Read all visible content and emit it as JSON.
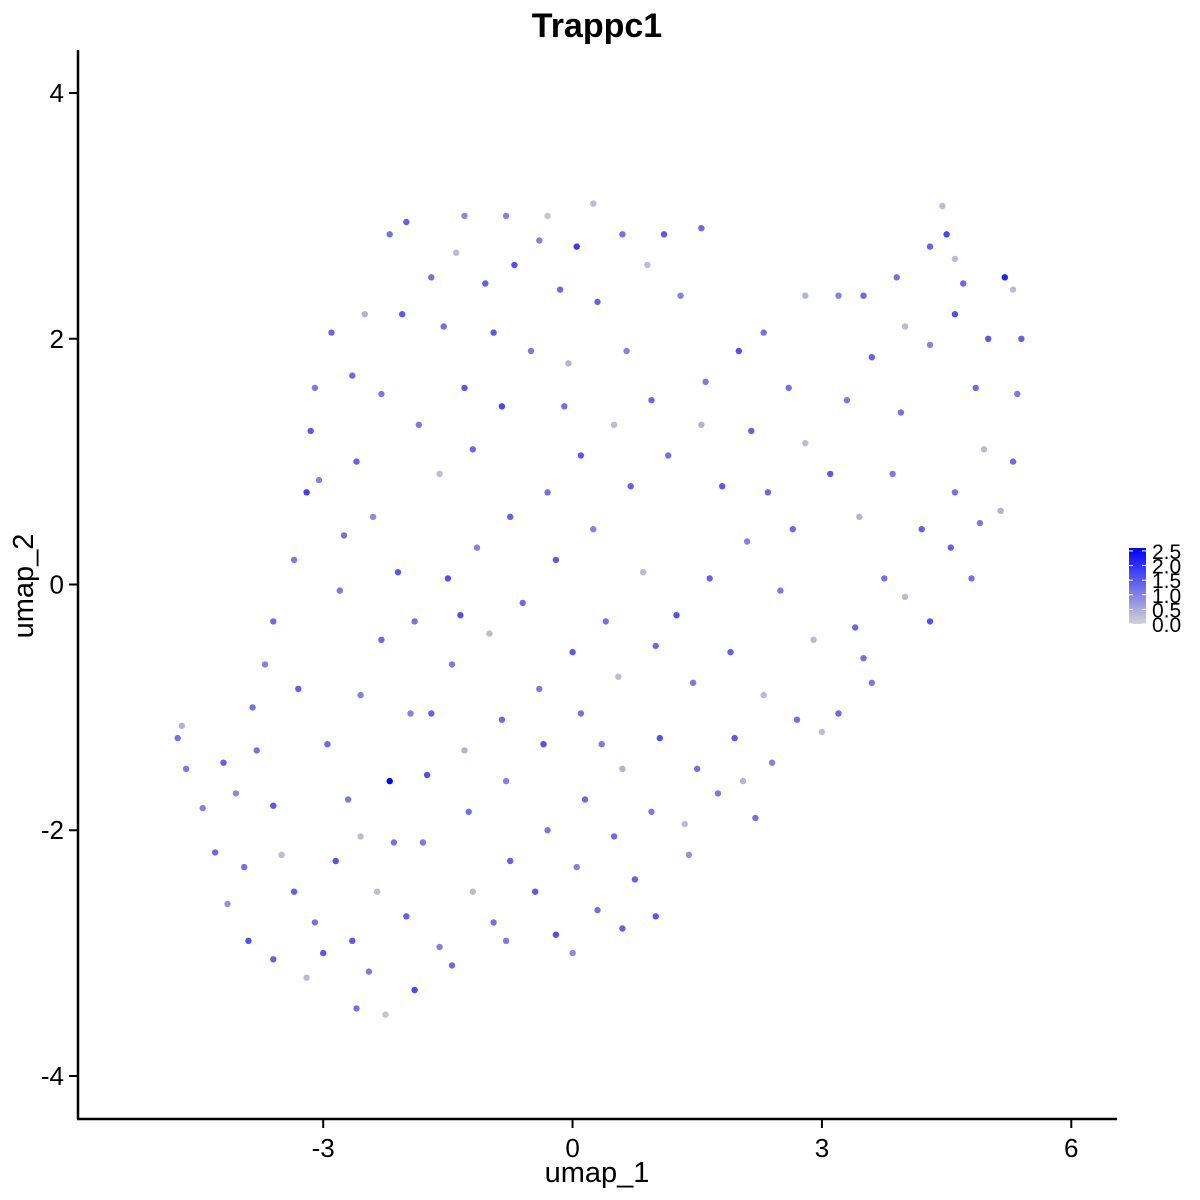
{
  "chart_data": {
    "type": "scatter",
    "title": "Trappc1",
    "xlabel": "umap_1",
    "ylabel": "umap_2",
    "xlim": [
      -5.95,
      6.55
    ],
    "ylim": [
      -4.35,
      4.35
    ],
    "xticks": [
      -3,
      0,
      3,
      6
    ],
    "xtick_labels": [
      "-3",
      "0",
      "3",
      "6"
    ],
    "yticks": [
      -4,
      -2,
      0,
      2,
      4
    ],
    "ytick_labels": [
      "-4",
      "-2",
      "0",
      "2",
      "4"
    ],
    "grid": false,
    "legend_position": "right",
    "color_scale": {
      "low_color": "#d3d3d3",
      "high_color": "#0000ff",
      "min": 0,
      "max": 2.6,
      "tick_values": [
        0.0,
        0.5,
        1.0,
        1.5,
        2.0,
        2.5
      ],
      "tick_labels": [
        "0.0",
        "0.5",
        "1.0",
        "1.5",
        "2.0",
        "2.5"
      ]
    },
    "points": [
      {
        "x": -4.75,
        "y": -1.25,
        "expr": 1.2
      },
      {
        "x": -4.7,
        "y": -1.15,
        "expr": 0.4
      },
      {
        "x": -4.65,
        "y": -1.5,
        "expr": 1.1
      },
      {
        "x": -4.45,
        "y": -1.82,
        "expr": 1.0
      },
      {
        "x": -4.3,
        "y": -2.18,
        "expr": 1.3
      },
      {
        "x": -4.15,
        "y": -2.6,
        "expr": 0.8
      },
      {
        "x": -3.9,
        "y": -2.9,
        "expr": 1.6
      },
      {
        "x": -3.6,
        "y": -3.05,
        "expr": 1.4
      },
      {
        "x": -3.2,
        "y": -3.2,
        "expr": 0.3
      },
      {
        "x": -2.6,
        "y": -3.45,
        "expr": 1.2
      },
      {
        "x": -2.25,
        "y": -3.5,
        "expr": 0.2
      },
      {
        "x": -1.9,
        "y": -3.3,
        "expr": 1.7
      },
      {
        "x": -1.45,
        "y": -3.1,
        "expr": 1.3
      },
      {
        "x": -0.8,
        "y": -2.9,
        "expr": 1.1
      },
      {
        "x": 0.0,
        "y": -3.0,
        "expr": 0.9
      },
      {
        "x": 0.6,
        "y": -2.8,
        "expr": 1.4
      },
      {
        "x": 1.0,
        "y": -2.7,
        "expr": 1.5
      },
      {
        "x": 1.4,
        "y": -2.2,
        "expr": 0.8
      },
      {
        "x": 2.2,
        "y": -1.9,
        "expr": 1.2
      },
      {
        "x": 3.0,
        "y": -1.2,
        "expr": 0.3
      },
      {
        "x": 3.6,
        "y": -0.8,
        "expr": 1.1
      },
      {
        "x": 4.3,
        "y": -0.3,
        "expr": 1.6
      },
      {
        "x": 4.8,
        "y": 0.05,
        "expr": 1.2
      },
      {
        "x": 5.15,
        "y": 0.6,
        "expr": 0.4
      },
      {
        "x": 5.3,
        "y": 1.0,
        "expr": 1.3
      },
      {
        "x": 5.35,
        "y": 1.55,
        "expr": 1.1
      },
      {
        "x": 5.4,
        "y": 2.0,
        "expr": 1.4
      },
      {
        "x": 5.3,
        "y": 2.4,
        "expr": 0.3
      },
      {
        "x": 5.2,
        "y": 2.5,
        "expr": 2.2
      },
      {
        "x": 4.6,
        "y": 2.65,
        "expr": 0.3
      },
      {
        "x": 4.5,
        "y": 2.85,
        "expr": 1.7
      },
      {
        "x": 4.45,
        "y": 3.08,
        "expr": 0.3
      },
      {
        "x": 4.3,
        "y": 2.75,
        "expr": 1.4
      },
      {
        "x": 3.9,
        "y": 2.5,
        "expr": 1.2
      },
      {
        "x": 3.5,
        "y": 2.35,
        "expr": 1.3
      },
      {
        "x": 3.2,
        "y": 2.35,
        "expr": 1.0
      },
      {
        "x": 2.8,
        "y": 2.35,
        "expr": 0.4
      },
      {
        "x": 2.3,
        "y": 2.05,
        "expr": 1.2
      },
      {
        "x": 2.0,
        "y": 1.9,
        "expr": 1.6
      },
      {
        "x": 1.6,
        "y": 1.65,
        "expr": 1.1
      },
      {
        "x": 1.1,
        "y": 2.85,
        "expr": 1.5
      },
      {
        "x": 1.55,
        "y": 2.9,
        "expr": 1.3
      },
      {
        "x": 0.6,
        "y": 2.85,
        "expr": 1.2
      },
      {
        "x": 0.25,
        "y": 3.1,
        "expr": 0.3
      },
      {
        "x": 0.05,
        "y": 2.75,
        "expr": 1.9
      },
      {
        "x": -0.3,
        "y": 3.0,
        "expr": 0.2
      },
      {
        "x": -0.8,
        "y": 3.0,
        "expr": 1.0
      },
      {
        "x": -1.3,
        "y": 3.0,
        "expr": 0.9
      },
      {
        "x": -2.0,
        "y": 2.95,
        "expr": 1.4
      },
      {
        "x": -2.2,
        "y": 2.85,
        "expr": 1.2
      },
      {
        "x": -2.5,
        "y": 2.2,
        "expr": 0.4
      },
      {
        "x": -2.9,
        "y": 2.05,
        "expr": 1.3
      },
      {
        "x": -3.1,
        "y": 1.6,
        "expr": 1.1
      },
      {
        "x": -3.15,
        "y": 1.25,
        "expr": 1.5
      },
      {
        "x": -3.05,
        "y": 0.85,
        "expr": 1.0
      },
      {
        "x": -3.2,
        "y": 0.75,
        "expr": 1.8
      },
      {
        "x": -3.35,
        "y": 0.2,
        "expr": 1.1
      },
      {
        "x": -3.6,
        "y": -0.3,
        "expr": 1.3
      },
      {
        "x": -3.7,
        "y": -0.65,
        "expr": 1.0
      },
      {
        "x": -3.85,
        "y": -1.0,
        "expr": 1.2
      },
      {
        "x": -4.2,
        "y": -1.45,
        "expr": 1.4
      },
      {
        "x": -4.05,
        "y": -1.7,
        "expr": 0.9
      },
      {
        "x": -3.8,
        "y": -1.35,
        "expr": 1.2
      },
      {
        "x": -3.6,
        "y": -1.8,
        "expr": 1.5
      },
      {
        "x": -3.5,
        "y": -2.2,
        "expr": 0.3
      },
      {
        "x": -3.35,
        "y": -2.5,
        "expr": 1.4
      },
      {
        "x": -3.1,
        "y": -2.75,
        "expr": 1.2
      },
      {
        "x": -2.85,
        "y": -2.25,
        "expr": 1.6
      },
      {
        "x": -2.7,
        "y": -1.75,
        "expr": 1.1
      },
      {
        "x": -2.95,
        "y": -1.3,
        "expr": 1.3
      },
      {
        "x": -2.55,
        "y": -0.9,
        "expr": 1.0
      },
      {
        "x": -2.65,
        "y": -2.9,
        "expr": 1.5
      },
      {
        "x": -2.45,
        "y": -3.15,
        "expr": 1.1
      },
      {
        "x": -2.2,
        "y": -1.6,
        "expr": 2.6
      },
      {
        "x": -2.15,
        "y": -2.1,
        "expr": 1.2
      },
      {
        "x": -2.35,
        "y": -2.5,
        "expr": 0.3
      },
      {
        "x": -2.0,
        "y": -2.7,
        "expr": 1.4
      },
      {
        "x": -1.8,
        "y": -2.1,
        "expr": 1.1
      },
      {
        "x": -1.75,
        "y": -1.55,
        "expr": 1.6
      },
      {
        "x": -1.95,
        "y": -1.05,
        "expr": 1.0
      },
      {
        "x": -2.3,
        "y": -0.45,
        "expr": 1.3
      },
      {
        "x": -2.1,
        "y": 0.1,
        "expr": 1.5
      },
      {
        "x": -2.4,
        "y": 0.55,
        "expr": 0.9
      },
      {
        "x": -2.75,
        "y": 0.4,
        "expr": 1.2
      },
      {
        "x": -2.6,
        "y": 1.0,
        "expr": 1.4
      },
      {
        "x": -2.3,
        "y": 1.55,
        "expr": 1.1
      },
      {
        "x": -2.65,
        "y": 1.7,
        "expr": 1.3
      },
      {
        "x": -2.05,
        "y": 2.2,
        "expr": 1.5
      },
      {
        "x": -1.7,
        "y": 2.5,
        "expr": 1.2
      },
      {
        "x": -1.4,
        "y": 2.7,
        "expr": 0.3
      },
      {
        "x": -1.05,
        "y": 2.45,
        "expr": 1.4
      },
      {
        "x": -0.7,
        "y": 2.6,
        "expr": 1.6
      },
      {
        "x": -0.4,
        "y": 2.8,
        "expr": 1.0
      },
      {
        "x": -1.55,
        "y": 2.1,
        "expr": 1.2
      },
      {
        "x": -1.3,
        "y": 1.6,
        "expr": 1.5
      },
      {
        "x": -1.85,
        "y": 1.3,
        "expr": 1.1
      },
      {
        "x": -1.6,
        "y": 0.9,
        "expr": 0.3
      },
      {
        "x": -1.2,
        "y": 1.1,
        "expr": 1.3
      },
      {
        "x": -0.85,
        "y": 1.45,
        "expr": 1.7
      },
      {
        "x": -0.5,
        "y": 1.9,
        "expr": 1.1
      },
      {
        "x": -0.05,
        "y": 1.8,
        "expr": 0.4
      },
      {
        "x": 0.3,
        "y": 2.3,
        "expr": 1.4
      },
      {
        "x": 0.65,
        "y": 1.9,
        "expr": 1.0
      },
      {
        "x": 0.95,
        "y": 1.5,
        "expr": 1.3
      },
      {
        "x": 0.5,
        "y": 1.3,
        "expr": 0.3
      },
      {
        "x": 0.1,
        "y": 1.05,
        "expr": 1.5
      },
      {
        "x": -0.3,
        "y": 0.75,
        "expr": 1.2
      },
      {
        "x": -0.75,
        "y": 0.55,
        "expr": 1.4
      },
      {
        "x": -1.15,
        "y": 0.3,
        "expr": 1.0
      },
      {
        "x": -1.5,
        "y": 0.05,
        "expr": 1.6
      },
      {
        "x": -1.9,
        "y": -0.3,
        "expr": 1.2
      },
      {
        "x": -1.45,
        "y": -0.65,
        "expr": 1.1
      },
      {
        "x": -1.0,
        "y": -0.4,
        "expr": 0.3
      },
      {
        "x": -0.6,
        "y": -0.15,
        "expr": 1.3
      },
      {
        "x": -0.2,
        "y": 0.2,
        "expr": 1.5
      },
      {
        "x": 0.25,
        "y": 0.45,
        "expr": 1.0
      },
      {
        "x": 0.7,
        "y": 0.8,
        "expr": 1.4
      },
      {
        "x": 1.15,
        "y": 1.05,
        "expr": 1.2
      },
      {
        "x": 1.55,
        "y": 1.3,
        "expr": 0.4
      },
      {
        "x": 1.8,
        "y": 0.8,
        "expr": 1.5
      },
      {
        "x": 2.35,
        "y": 0.75,
        "expr": 1.3
      },
      {
        "x": 2.8,
        "y": 1.15,
        "expr": 0.3
      },
      {
        "x": 3.3,
        "y": 1.5,
        "expr": 1.1
      },
      {
        "x": 3.6,
        "y": 1.85,
        "expr": 1.4
      },
      {
        "x": 3.95,
        "y": 1.4,
        "expr": 1.2
      },
      {
        "x": 4.3,
        "y": 1.95,
        "expr": 1.0
      },
      {
        "x": 4.6,
        "y": 2.2,
        "expr": 1.6
      },
      {
        "x": 4.85,
        "y": 1.6,
        "expr": 1.3
      },
      {
        "x": 4.95,
        "y": 1.1,
        "expr": 0.3
      },
      {
        "x": 4.6,
        "y": 0.75,
        "expr": 1.2
      },
      {
        "x": 4.2,
        "y": 0.45,
        "expr": 1.4
      },
      {
        "x": 3.85,
        "y": 0.9,
        "expr": 1.1
      },
      {
        "x": 3.45,
        "y": 0.55,
        "expr": 0.4
      },
      {
        "x": 3.1,
        "y": 0.9,
        "expr": 1.5
      },
      {
        "x": 3.75,
        "y": 0.05,
        "expr": 1.2
      },
      {
        "x": 3.4,
        "y": -0.35,
        "expr": 1.3
      },
      {
        "x": 2.9,
        "y": -0.45,
        "expr": 0.3
      },
      {
        "x": 2.5,
        "y": -0.05,
        "expr": 1.1
      },
      {
        "x": 2.1,
        "y": 0.35,
        "expr": 1.0
      },
      {
        "x": 1.65,
        "y": 0.05,
        "expr": 1.4
      },
      {
        "x": 1.25,
        "y": -0.25,
        "expr": 1.6
      },
      {
        "x": 0.85,
        "y": 0.1,
        "expr": 0.3
      },
      {
        "x": 0.4,
        "y": -0.3,
        "expr": 1.2
      },
      {
        "x": 0.0,
        "y": -0.55,
        "expr": 1.5
      },
      {
        "x": -0.4,
        "y": -0.85,
        "expr": 1.1
      },
      {
        "x": -0.85,
        "y": -1.1,
        "expr": 1.3
      },
      {
        "x": -1.3,
        "y": -1.35,
        "expr": 0.4
      },
      {
        "x": -1.7,
        "y": -1.05,
        "expr": 1.4
      },
      {
        "x": -1.25,
        "y": -1.85,
        "expr": 1.2
      },
      {
        "x": -0.8,
        "y": -1.6,
        "expr": 1.0
      },
      {
        "x": -0.35,
        "y": -1.3,
        "expr": 1.6
      },
      {
        "x": 0.1,
        "y": -1.05,
        "expr": 1.2
      },
      {
        "x": 0.55,
        "y": -0.75,
        "expr": 0.3
      },
      {
        "x": 1.0,
        "y": -0.5,
        "expr": 1.3
      },
      {
        "x": 1.45,
        "y": -0.8,
        "expr": 1.1
      },
      {
        "x": 1.9,
        "y": -0.55,
        "expr": 1.4
      },
      {
        "x": 2.3,
        "y": -0.9,
        "expr": 0.3
      },
      {
        "x": 2.7,
        "y": -1.1,
        "expr": 1.2
      },
      {
        "x": 2.4,
        "y": -1.45,
        "expr": 1.0
      },
      {
        "x": 1.95,
        "y": -1.25,
        "expr": 1.5
      },
      {
        "x": 1.5,
        "y": -1.5,
        "expr": 1.2
      },
      {
        "x": 1.05,
        "y": -1.25,
        "expr": 1.6
      },
      {
        "x": 0.6,
        "y": -1.5,
        "expr": 0.4
      },
      {
        "x": 0.15,
        "y": -1.75,
        "expr": 1.3
      },
      {
        "x": -0.3,
        "y": -2.0,
        "expr": 1.1
      },
      {
        "x": -0.75,
        "y": -2.25,
        "expr": 1.4
      },
      {
        "x": -1.2,
        "y": -2.5,
        "expr": 0.3
      },
      {
        "x": -0.95,
        "y": -2.75,
        "expr": 1.2
      },
      {
        "x": -0.45,
        "y": -2.5,
        "expr": 1.5
      },
      {
        "x": 0.05,
        "y": -2.3,
        "expr": 1.0
      },
      {
        "x": 0.5,
        "y": -2.05,
        "expr": 1.3
      },
      {
        "x": 0.95,
        "y": -1.85,
        "expr": 1.1
      },
      {
        "x": 1.35,
        "y": -1.95,
        "expr": 0.3
      },
      {
        "x": 0.75,
        "y": -2.4,
        "expr": 1.4
      },
      {
        "x": 0.3,
        "y": -2.65,
        "expr": 1.2
      },
      {
        "x": -0.2,
        "y": -2.85,
        "expr": 1.6
      },
      {
        "x": 1.75,
        "y": -1.7,
        "expr": 1.1
      },
      {
        "x": 2.05,
        "y": -1.6,
        "expr": 0.4
      },
      {
        "x": 3.2,
        "y": -1.05,
        "expr": 1.3
      },
      {
        "x": 3.5,
        "y": -0.6,
        "expr": 1.2
      },
      {
        "x": 4.0,
        "y": -0.1,
        "expr": 0.3
      },
      {
        "x": 4.55,
        "y": 0.3,
        "expr": 1.4
      },
      {
        "x": 4.9,
        "y": 0.5,
        "expr": 1.1
      },
      {
        "x": 5.0,
        "y": 2.0,
        "expr": 1.5
      },
      {
        "x": 4.7,
        "y": 2.45,
        "expr": 1.3
      },
      {
        "x": 4.0,
        "y": 2.1,
        "expr": 0.3
      },
      {
        "x": 2.6,
        "y": 1.6,
        "expr": 1.2
      },
      {
        "x": 2.15,
        "y": 1.25,
        "expr": 1.4
      },
      {
        "x": 1.3,
        "y": 2.35,
        "expr": 1.0
      },
      {
        "x": 0.9,
        "y": 2.6,
        "expr": 0.3
      },
      {
        "x": -0.15,
        "y": 2.4,
        "expr": 1.3
      },
      {
        "x": -0.95,
        "y": 2.05,
        "expr": 1.5
      },
      {
        "x": -2.8,
        "y": -0.05,
        "expr": 1.1
      },
      {
        "x": -3.3,
        "y": -0.85,
        "expr": 1.4
      },
      {
        "x": -3.95,
        "y": -2.3,
        "expr": 1.2
      },
      {
        "x": -3.0,
        "y": -3.0,
        "expr": 1.5
      },
      {
        "x": -1.6,
        "y": -2.95,
        "expr": 1.0
      },
      {
        "x": -2.55,
        "y": -2.05,
        "expr": 0.3
      },
      {
        "x": -1.35,
        "y": -0.25,
        "expr": 1.6
      },
      {
        "x": -0.1,
        "y": 1.45,
        "expr": 1.2
      },
      {
        "x": 0.35,
        "y": -1.3,
        "expr": 1.1
      },
      {
        "x": 2.65,
        "y": 0.45,
        "expr": 1.3
      }
    ]
  }
}
